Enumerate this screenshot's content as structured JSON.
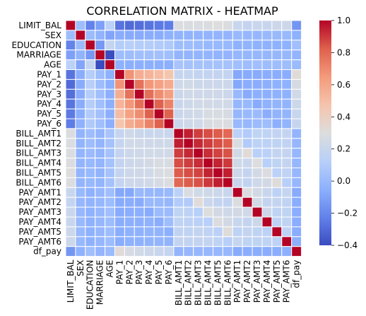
{
  "chart_data": {
    "type": "heatmap",
    "title": "CORRELATION MATRIX - HEATMAP",
    "labels": [
      "LIMIT_BAL",
      "SEX",
      "EDUCATION",
      "MARRIAGE",
      "AGE",
      "PAY_1",
      "PAY_2",
      "PAY_3",
      "PAY_4",
      "PAY_5",
      "PAY_6",
      "BILL_AMT1",
      "BILL_AMT2",
      "BILL_AMT3",
      "BILL_AMT4",
      "BILL_AMT5",
      "BILL_AMT6",
      "PAY_AMT1",
      "PAY_AMT2",
      "PAY_AMT3",
      "PAY_AMT4",
      "PAY_AMT5",
      "PAY_AMT6",
      "df_pay"
    ],
    "colormap": "coolwarm",
    "vmin": -0.4,
    "vmax": 1.0,
    "colorbar_ticks": [
      "1.0",
      "0.8",
      "0.6",
      "0.4",
      "0.2",
      "0.0",
      "−0.2",
      "−0.4"
    ],
    "colorbar_tick_values": [
      1.0,
      0.8,
      0.6,
      0.4,
      0.2,
      0.0,
      -0.2,
      -0.4
    ],
    "grid_lines_color": "#ffffff",
    "matrix": [
      [
        1.0,
        0.02,
        -0.22,
        -0.11,
        0.14,
        -0.27,
        -0.3,
        -0.29,
        -0.27,
        -0.25,
        -0.24,
        0.29,
        0.28,
        0.28,
        0.29,
        0.3,
        0.29,
        0.2,
        0.18,
        0.21,
        0.2,
        0.22,
        0.22,
        -0.15
      ],
      [
        0.02,
        1.0,
        0.01,
        -0.03,
        -0.09,
        -0.06,
        -0.07,
        -0.07,
        -0.06,
        -0.06,
        -0.04,
        -0.03,
        -0.03,
        -0.02,
        -0.02,
        -0.02,
        -0.02,
        0.0,
        -0.01,
        -0.01,
        0.0,
        0.0,
        0.0,
        -0.04
      ],
      [
        -0.22,
        0.01,
        1.0,
        -0.14,
        0.18,
        0.11,
        0.12,
        0.11,
        0.11,
        0.1,
        0.09,
        0.02,
        0.02,
        0.01,
        0.0,
        0.0,
        0.0,
        -0.04,
        -0.03,
        -0.04,
        -0.04,
        -0.04,
        -0.04,
        0.03
      ],
      [
        -0.11,
        -0.03,
        -0.14,
        1.0,
        -0.41,
        0.02,
        0.02,
        0.03,
        0.03,
        0.04,
        0.03,
        -0.02,
        -0.02,
        -0.02,
        -0.02,
        -0.03,
        -0.02,
        -0.01,
        -0.01,
        -0.01,
        -0.01,
        -0.01,
        -0.01,
        -0.02
      ],
      [
        0.14,
        -0.09,
        0.18,
        -0.41,
        1.0,
        -0.04,
        -0.05,
        -0.05,
        -0.05,
        -0.05,
        -0.05,
        0.06,
        0.05,
        0.05,
        0.05,
        0.05,
        0.05,
        0.03,
        0.02,
        0.03,
        0.02,
        0.02,
        0.02,
        0.01
      ],
      [
        -0.27,
        -0.06,
        0.11,
        0.02,
        -0.04,
        1.0,
        0.67,
        0.57,
        0.54,
        0.51,
        0.47,
        0.19,
        0.19,
        0.18,
        0.18,
        0.18,
        0.18,
        -0.08,
        -0.07,
        -0.07,
        -0.06,
        -0.06,
        -0.06,
        0.32
      ],
      [
        -0.3,
        -0.07,
        0.12,
        0.02,
        -0.05,
        0.67,
        1.0,
        0.77,
        0.66,
        0.62,
        0.58,
        0.23,
        0.24,
        0.22,
        0.22,
        0.22,
        0.22,
        -0.08,
        -0.06,
        -0.06,
        -0.05,
        -0.04,
        -0.04,
        0.26
      ],
      [
        -0.29,
        -0.07,
        0.11,
        0.03,
        -0.05,
        0.57,
        0.77,
        1.0,
        0.78,
        0.69,
        0.63,
        0.21,
        0.24,
        0.23,
        0.23,
        0.23,
        0.22,
        0.0,
        -0.07,
        -0.05,
        -0.05,
        -0.04,
        -0.04,
        0.24
      ],
      [
        -0.27,
        -0.06,
        0.11,
        0.03,
        -0.05,
        0.54,
        0.66,
        0.78,
        1.0,
        0.82,
        0.72,
        0.2,
        0.23,
        0.24,
        0.25,
        0.24,
        0.24,
        -0.01,
        -0.0,
        -0.07,
        -0.04,
        -0.03,
        -0.03,
        0.22
      ],
      [
        -0.25,
        -0.06,
        0.1,
        0.04,
        -0.05,
        0.51,
        0.62,
        0.69,
        0.82,
        1.0,
        0.82,
        0.21,
        0.23,
        0.24,
        0.27,
        0.27,
        0.26,
        -0.01,
        -0.0,
        0.01,
        -0.06,
        -0.03,
        -0.02,
        0.2
      ],
      [
        -0.24,
        -0.04,
        0.09,
        0.03,
        -0.05,
        0.47,
        0.58,
        0.63,
        0.72,
        0.82,
        1.0,
        0.21,
        0.23,
        0.24,
        0.27,
        0.29,
        0.29,
        -0.0,
        -0.01,
        0.01,
        0.02,
        -0.05,
        -0.03,
        0.19
      ],
      [
        0.29,
        -0.03,
        0.02,
        -0.02,
        0.06,
        0.19,
        0.23,
        0.21,
        0.2,
        0.21,
        0.21,
        1.0,
        0.95,
        0.89,
        0.86,
        0.83,
        0.8,
        0.14,
        0.1,
        0.16,
        0.16,
        0.17,
        0.18,
        -0.02
      ],
      [
        0.28,
        -0.03,
        0.02,
        -0.02,
        0.05,
        0.19,
        0.24,
        0.24,
        0.23,
        0.23,
        0.23,
        0.95,
        1.0,
        0.93,
        0.89,
        0.86,
        0.83,
        0.28,
        0.1,
        0.15,
        0.15,
        0.16,
        0.17,
        -0.01
      ],
      [
        0.28,
        -0.02,
        0.01,
        -0.02,
        0.05,
        0.18,
        0.22,
        0.23,
        0.24,
        0.24,
        0.24,
        0.89,
        0.93,
        1.0,
        0.92,
        0.88,
        0.85,
        0.24,
        0.32,
        0.13,
        0.14,
        0.18,
        0.18,
        -0.01
      ],
      [
        0.29,
        -0.02,
        0.0,
        -0.02,
        0.05,
        0.18,
        0.22,
        0.23,
        0.25,
        0.27,
        0.27,
        0.86,
        0.89,
        0.92,
        1.0,
        0.94,
        0.9,
        0.23,
        0.21,
        0.3,
        0.13,
        0.16,
        0.18,
        -0.01
      ],
      [
        0.3,
        -0.02,
        0.0,
        -0.03,
        0.05,
        0.18,
        0.22,
        0.23,
        0.24,
        0.27,
        0.29,
        0.83,
        0.86,
        0.88,
        0.94,
        1.0,
        0.95,
        0.22,
        0.18,
        0.25,
        0.29,
        0.14,
        0.16,
        -0.01
      ],
      [
        0.29,
        -0.02,
        0.0,
        -0.02,
        0.05,
        0.18,
        0.22,
        0.22,
        0.24,
        0.26,
        0.29,
        0.8,
        0.83,
        0.85,
        0.9,
        0.95,
        1.0,
        0.2,
        0.17,
        0.23,
        0.25,
        0.31,
        0.12,
        -0.01
      ],
      [
        0.2,
        0.0,
        -0.04,
        -0.01,
        0.03,
        -0.08,
        -0.08,
        0.0,
        -0.01,
        -0.01,
        -0.0,
        0.14,
        0.28,
        0.24,
        0.23,
        0.22,
        0.2,
        1.0,
        0.29,
        0.25,
        0.2,
        0.15,
        0.19,
        -0.07
      ],
      [
        0.18,
        -0.01,
        -0.03,
        -0.01,
        0.02,
        -0.07,
        -0.06,
        -0.07,
        -0.0,
        -0.0,
        -0.01,
        0.1,
        0.1,
        0.32,
        0.21,
        0.18,
        0.17,
        0.29,
        1.0,
        0.24,
        0.18,
        0.18,
        0.16,
        -0.06
      ],
      [
        0.21,
        -0.01,
        -0.04,
        -0.01,
        0.03,
        -0.07,
        -0.06,
        -0.05,
        -0.07,
        0.01,
        0.01,
        0.16,
        0.15,
        0.13,
        0.3,
        0.25,
        0.23,
        0.25,
        0.24,
        1.0,
        0.22,
        0.16,
        0.16,
        -0.06
      ],
      [
        0.2,
        0.0,
        -0.04,
        -0.01,
        0.02,
        -0.06,
        -0.05,
        -0.05,
        -0.04,
        -0.06,
        0.02,
        0.16,
        0.15,
        0.14,
        0.13,
        0.29,
        0.25,
        0.2,
        0.18,
        0.22,
        1.0,
        0.15,
        0.16,
        -0.06
      ],
      [
        0.22,
        0.0,
        -0.04,
        -0.01,
        0.02,
        -0.06,
        -0.04,
        -0.04,
        -0.03,
        -0.03,
        -0.05,
        0.17,
        0.16,
        0.18,
        0.16,
        0.14,
        0.31,
        0.15,
        0.18,
        0.16,
        0.15,
        1.0,
        0.15,
        -0.06
      ],
      [
        0.22,
        0.0,
        -0.04,
        -0.01,
        0.02,
        -0.06,
        -0.04,
        -0.04,
        -0.03,
        -0.02,
        -0.03,
        0.18,
        0.17,
        0.18,
        0.18,
        0.16,
        0.12,
        0.19,
        0.16,
        0.16,
        0.16,
        0.15,
        1.0,
        -0.05
      ],
      [
        -0.15,
        -0.04,
        0.03,
        -0.02,
        0.01,
        0.32,
        0.26,
        0.24,
        0.22,
        0.2,
        0.19,
        -0.02,
        -0.01,
        -0.01,
        -0.01,
        -0.01,
        -0.01,
        -0.07,
        -0.06,
        -0.06,
        -0.06,
        -0.06,
        -0.05,
        1.0
      ]
    ]
  }
}
